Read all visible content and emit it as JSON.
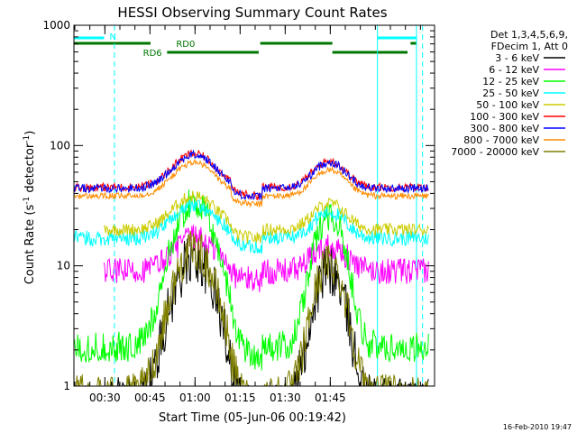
{
  "chart_data": {
    "type": "line",
    "title": "HESSI Observing Summary Count Rates",
    "xlabel": "Start Time (05-Jun-06 00:19:42)",
    "ylabel": "Count Rate (s⁻¹ detector⁻¹)",
    "ylabel_parts": {
      "base": "Count Rate (s",
      "sup1": "-1",
      "mid": " detector",
      "sup2": "-1",
      "end": ")"
    },
    "yscale": "log",
    "ylim": [
      1,
      1000
    ],
    "xlim_minutes": [
      0,
      120
    ],
    "y_ticks": [
      {
        "value": 1,
        "label": "1"
      },
      {
        "value": 10,
        "label": "10"
      },
      {
        "value": 100,
        "label": "100"
      },
      {
        "value": 1000,
        "label": "1000"
      }
    ],
    "x_ticks": [
      {
        "minute": 10.3,
        "label": "00:30"
      },
      {
        "minute": 25.3,
        "label": "00:45"
      },
      {
        "minute": 40.3,
        "label": "01:00"
      },
      {
        "minute": 55.3,
        "label": "01:15"
      },
      {
        "minute": 70.3,
        "label": "01:30"
      },
      {
        "minute": 85.3,
        "label": "01:45"
      }
    ],
    "legend_header": [
      "Det 1,3,4,5,6,9,",
      "FDecim 1, Att 0"
    ],
    "series": [
      {
        "name": "3 - 6 keV",
        "color": "#000000"
      },
      {
        "name": "6 - 12 keV",
        "color": "#ff00ff"
      },
      {
        "name": "12 - 25 keV",
        "color": "#00ff00"
      },
      {
        "name": "25 - 50 keV",
        "color": "#00ffff"
      },
      {
        "name": "50 - 100 keV",
        "color": "#cccc00"
      },
      {
        "name": "100 - 300 keV",
        "color": "#ff0000"
      },
      {
        "name": "300 - 800 keV",
        "color": "#0000ff"
      },
      {
        "name": "800 - 7000 keV",
        "color": "#ff8c00"
      },
      {
        "name": "7000 - 20000 keV",
        "color": "#808000"
      }
    ],
    "flag_bars": [
      {
        "label": "N",
        "color": "#00ffff",
        "segments_minutes": [
          [
            0,
            10
          ],
          [
            101,
            114
          ]
        ]
      },
      {
        "label": "RD0",
        "color": "#007700",
        "segments_minutes": [
          [
            0,
            25.5
          ],
          [
            62,
            86
          ],
          [
            112,
            114
          ]
        ]
      },
      {
        "label": "RD6",
        "color": "#007700",
        "segments_minutes": [
          [
            31,
            61.5
          ],
          [
            86,
            111
          ]
        ]
      }
    ],
    "event_lines": [
      {
        "minute": 101,
        "style": "solid",
        "color": "#00ffff"
      },
      {
        "minute": 114,
        "style": "solid",
        "color": "#00ffff"
      },
      {
        "minute": 13.5,
        "style": "dashed",
        "color": "#00ffff"
      },
      {
        "minute": 116,
        "style": "dashed",
        "color": "#00ffff"
      }
    ]
  },
  "footer": {
    "timestamp": "16-Feb-2010 19:47"
  }
}
